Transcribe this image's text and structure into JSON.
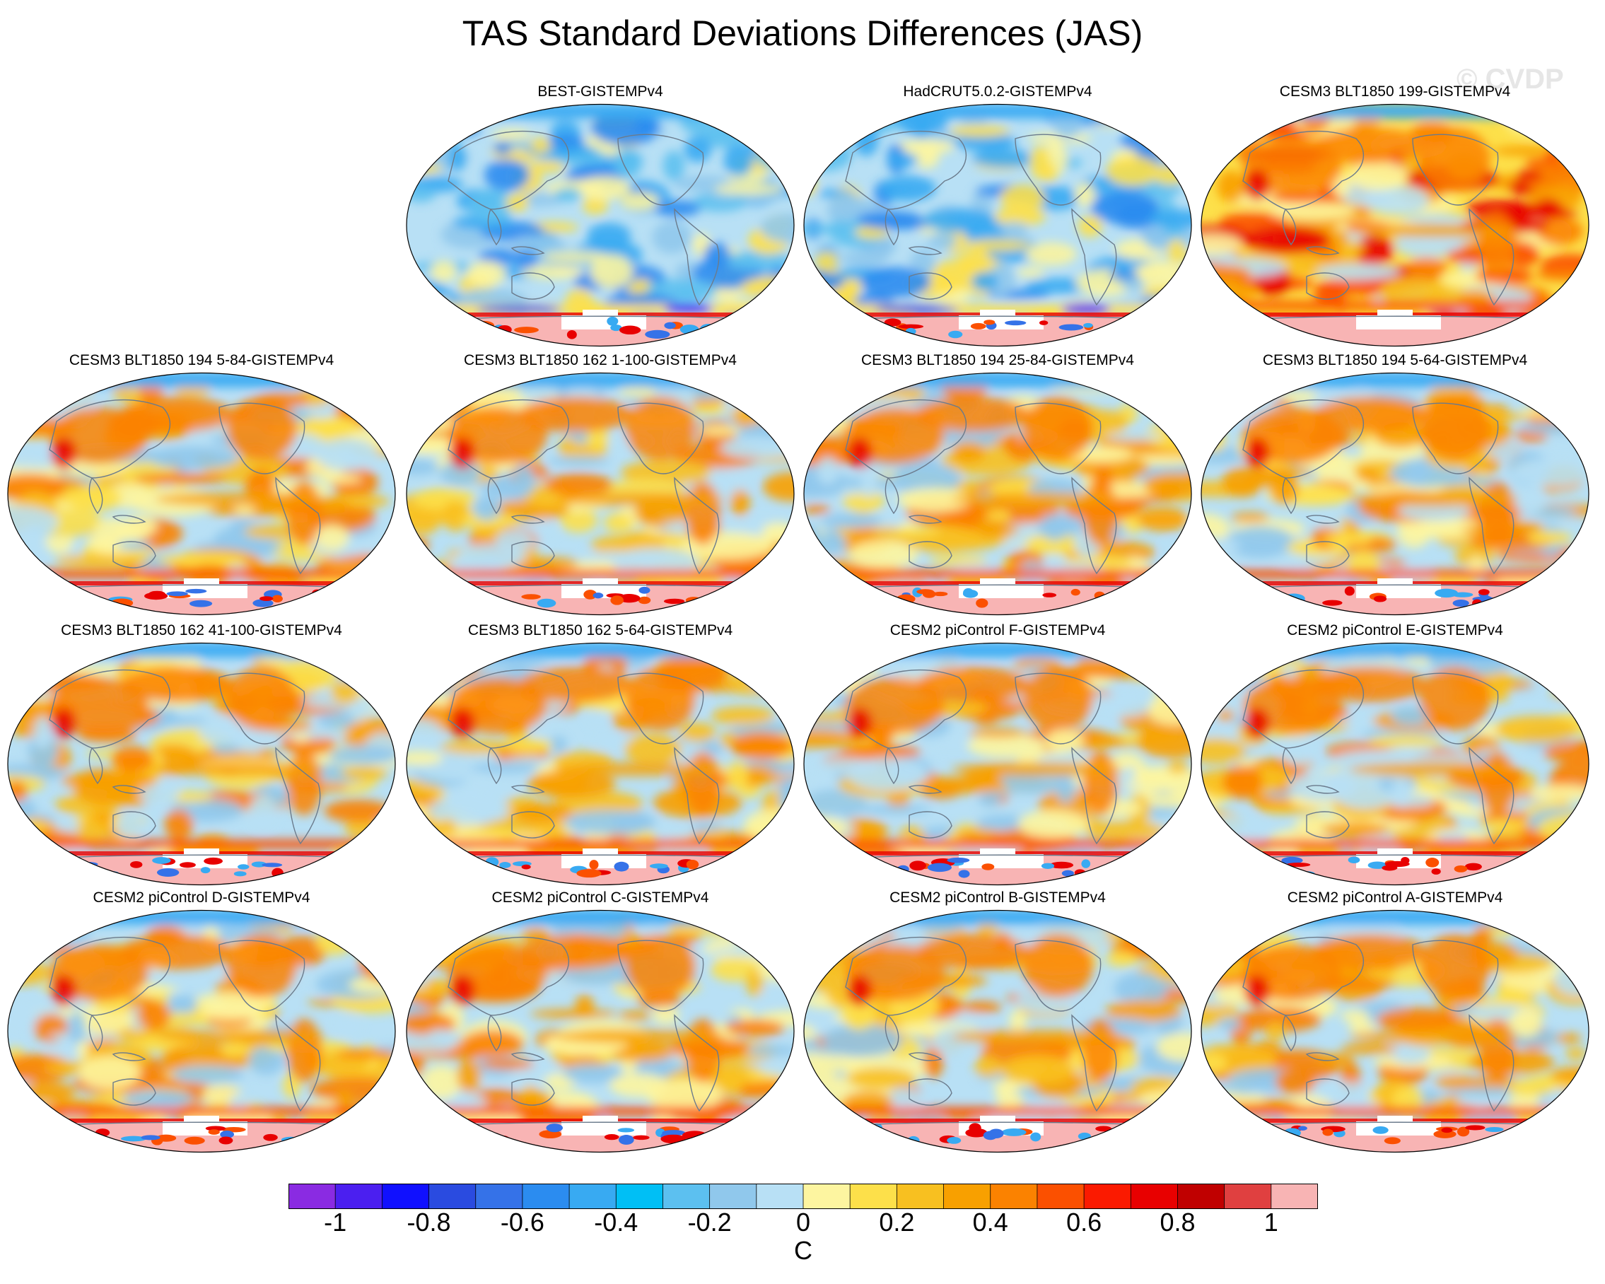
{
  "title": "TAS Standard Deviations Differences (JAS)",
  "watermark": "© CVDP",
  "units": "C",
  "colorbar": {
    "levels": [
      -1,
      -0.8,
      -0.6,
      -0.4,
      -0.2,
      0,
      0.2,
      0.4,
      0.6,
      0.8,
      1
    ],
    "tick_labels": [
      "-1",
      "-0.8",
      "-0.6",
      "-0.4",
      "-0.2",
      "0",
      "0.2",
      "0.4",
      "0.6",
      "0.8",
      "1"
    ],
    "colors": [
      "#8a2be2",
      "#4b1ff0",
      "#1010ff",
      "#2a4be0",
      "#3572e8",
      "#2b8cf0",
      "#38aaf2",
      "#00bff5",
      "#5cc0f0",
      "#90c8ec",
      "#b8e0f5",
      "#fdf5a0",
      "#fde04a",
      "#f8c020",
      "#f8a000",
      "#fb8200",
      "#fb5000",
      "#fb1a00",
      "#e80000",
      "#c00000",
      "#e04040",
      "#f8b4b4"
    ]
  },
  "panels": [
    {
      "title": "BEST-GISTEMPv4",
      "style": "obs"
    },
    {
      "title": "HadCRUT5.0.2-GISTEMPv4",
      "style": "obs"
    },
    {
      "title": "CESM3 BLT1850 199-GISTEMPv4",
      "style": "warm"
    },
    {
      "title": "CESM3 BLT1850 194 5-84-GISTEMPv4",
      "style": "model"
    },
    {
      "title": "CESM3 BLT1850 162 1-100-GISTEMPv4",
      "style": "model"
    },
    {
      "title": "CESM3 BLT1850 194 25-84-GISTEMPv4",
      "style": "model"
    },
    {
      "title": "CESM3 BLT1850 194 5-64-GISTEMPv4",
      "style": "model"
    },
    {
      "title": "CESM3 BLT1850 162 41-100-GISTEMPv4",
      "style": "model"
    },
    {
      "title": "CESM3 BLT1850 162 5-64-GISTEMPv4",
      "style": "model"
    },
    {
      "title": "CESM2 piControl F-GISTEMPv4",
      "style": "model"
    },
    {
      "title": "CESM2 piControl E-GISTEMPv4",
      "style": "model"
    },
    {
      "title": "CESM2 piControl D-GISTEMPv4",
      "style": "model"
    },
    {
      "title": "CESM2 piControl C-GISTEMPv4",
      "style": "model"
    },
    {
      "title": "CESM2 piControl B-GISTEMPv4",
      "style": "model"
    },
    {
      "title": "CESM2 piControl A-GISTEMPv4",
      "style": "model"
    }
  ]
}
